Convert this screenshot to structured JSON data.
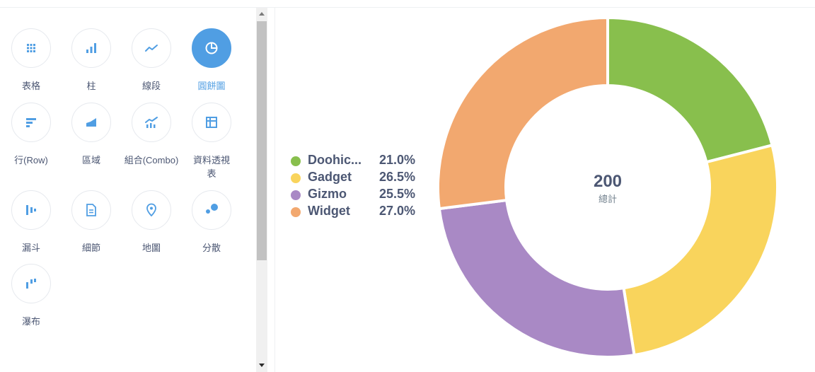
{
  "visualizations": [
    {
      "label": "表格",
      "icon": "table-grid-icon",
      "selected": false
    },
    {
      "label": "柱",
      "icon": "bar-chart-icon",
      "selected": false
    },
    {
      "label": "線段",
      "icon": "line-chart-icon",
      "selected": false
    },
    {
      "label": "圓餅圖",
      "icon": "pie-chart-icon",
      "selected": true
    },
    {
      "label": "行(Row)",
      "icon": "row-chart-icon",
      "selected": false
    },
    {
      "label": "區域",
      "icon": "area-chart-icon",
      "selected": false
    },
    {
      "label": "組合(Combo)",
      "icon": "combo-chart-icon",
      "selected": false
    },
    {
      "label": "資料透視表",
      "icon": "pivot-table-icon",
      "selected": false
    },
    {
      "label": "漏斗",
      "icon": "funnel-icon",
      "selected": false
    },
    {
      "label": "細節",
      "icon": "detail-document-icon",
      "selected": false
    },
    {
      "label": "地圖",
      "icon": "map-pin-icon",
      "selected": false
    },
    {
      "label": "分散",
      "icon": "scatter-icon",
      "selected": false
    },
    {
      "label": "瀑布",
      "icon": "waterfall-icon",
      "selected": false
    }
  ],
  "colors": {
    "accent": "#509ee3",
    "text": "#4c5773"
  },
  "chart_data": {
    "type": "pie",
    "categories": [
      "Doohickey",
      "Gadget",
      "Gizmo",
      "Widget"
    ],
    "legend_labels": [
      "Doohic...",
      "Gadget",
      "Gizmo",
      "Widget"
    ],
    "values": [
      42,
      53,
      51,
      54
    ],
    "percent_labels": [
      "21.0%",
      "26.5%",
      "25.5%",
      "27.0%"
    ],
    "colors": [
      "#88bf4d",
      "#f9d45c",
      "#a989c5",
      "#f2a86f"
    ],
    "center_total": "200",
    "center_label": "總計",
    "legend_position": "left"
  }
}
